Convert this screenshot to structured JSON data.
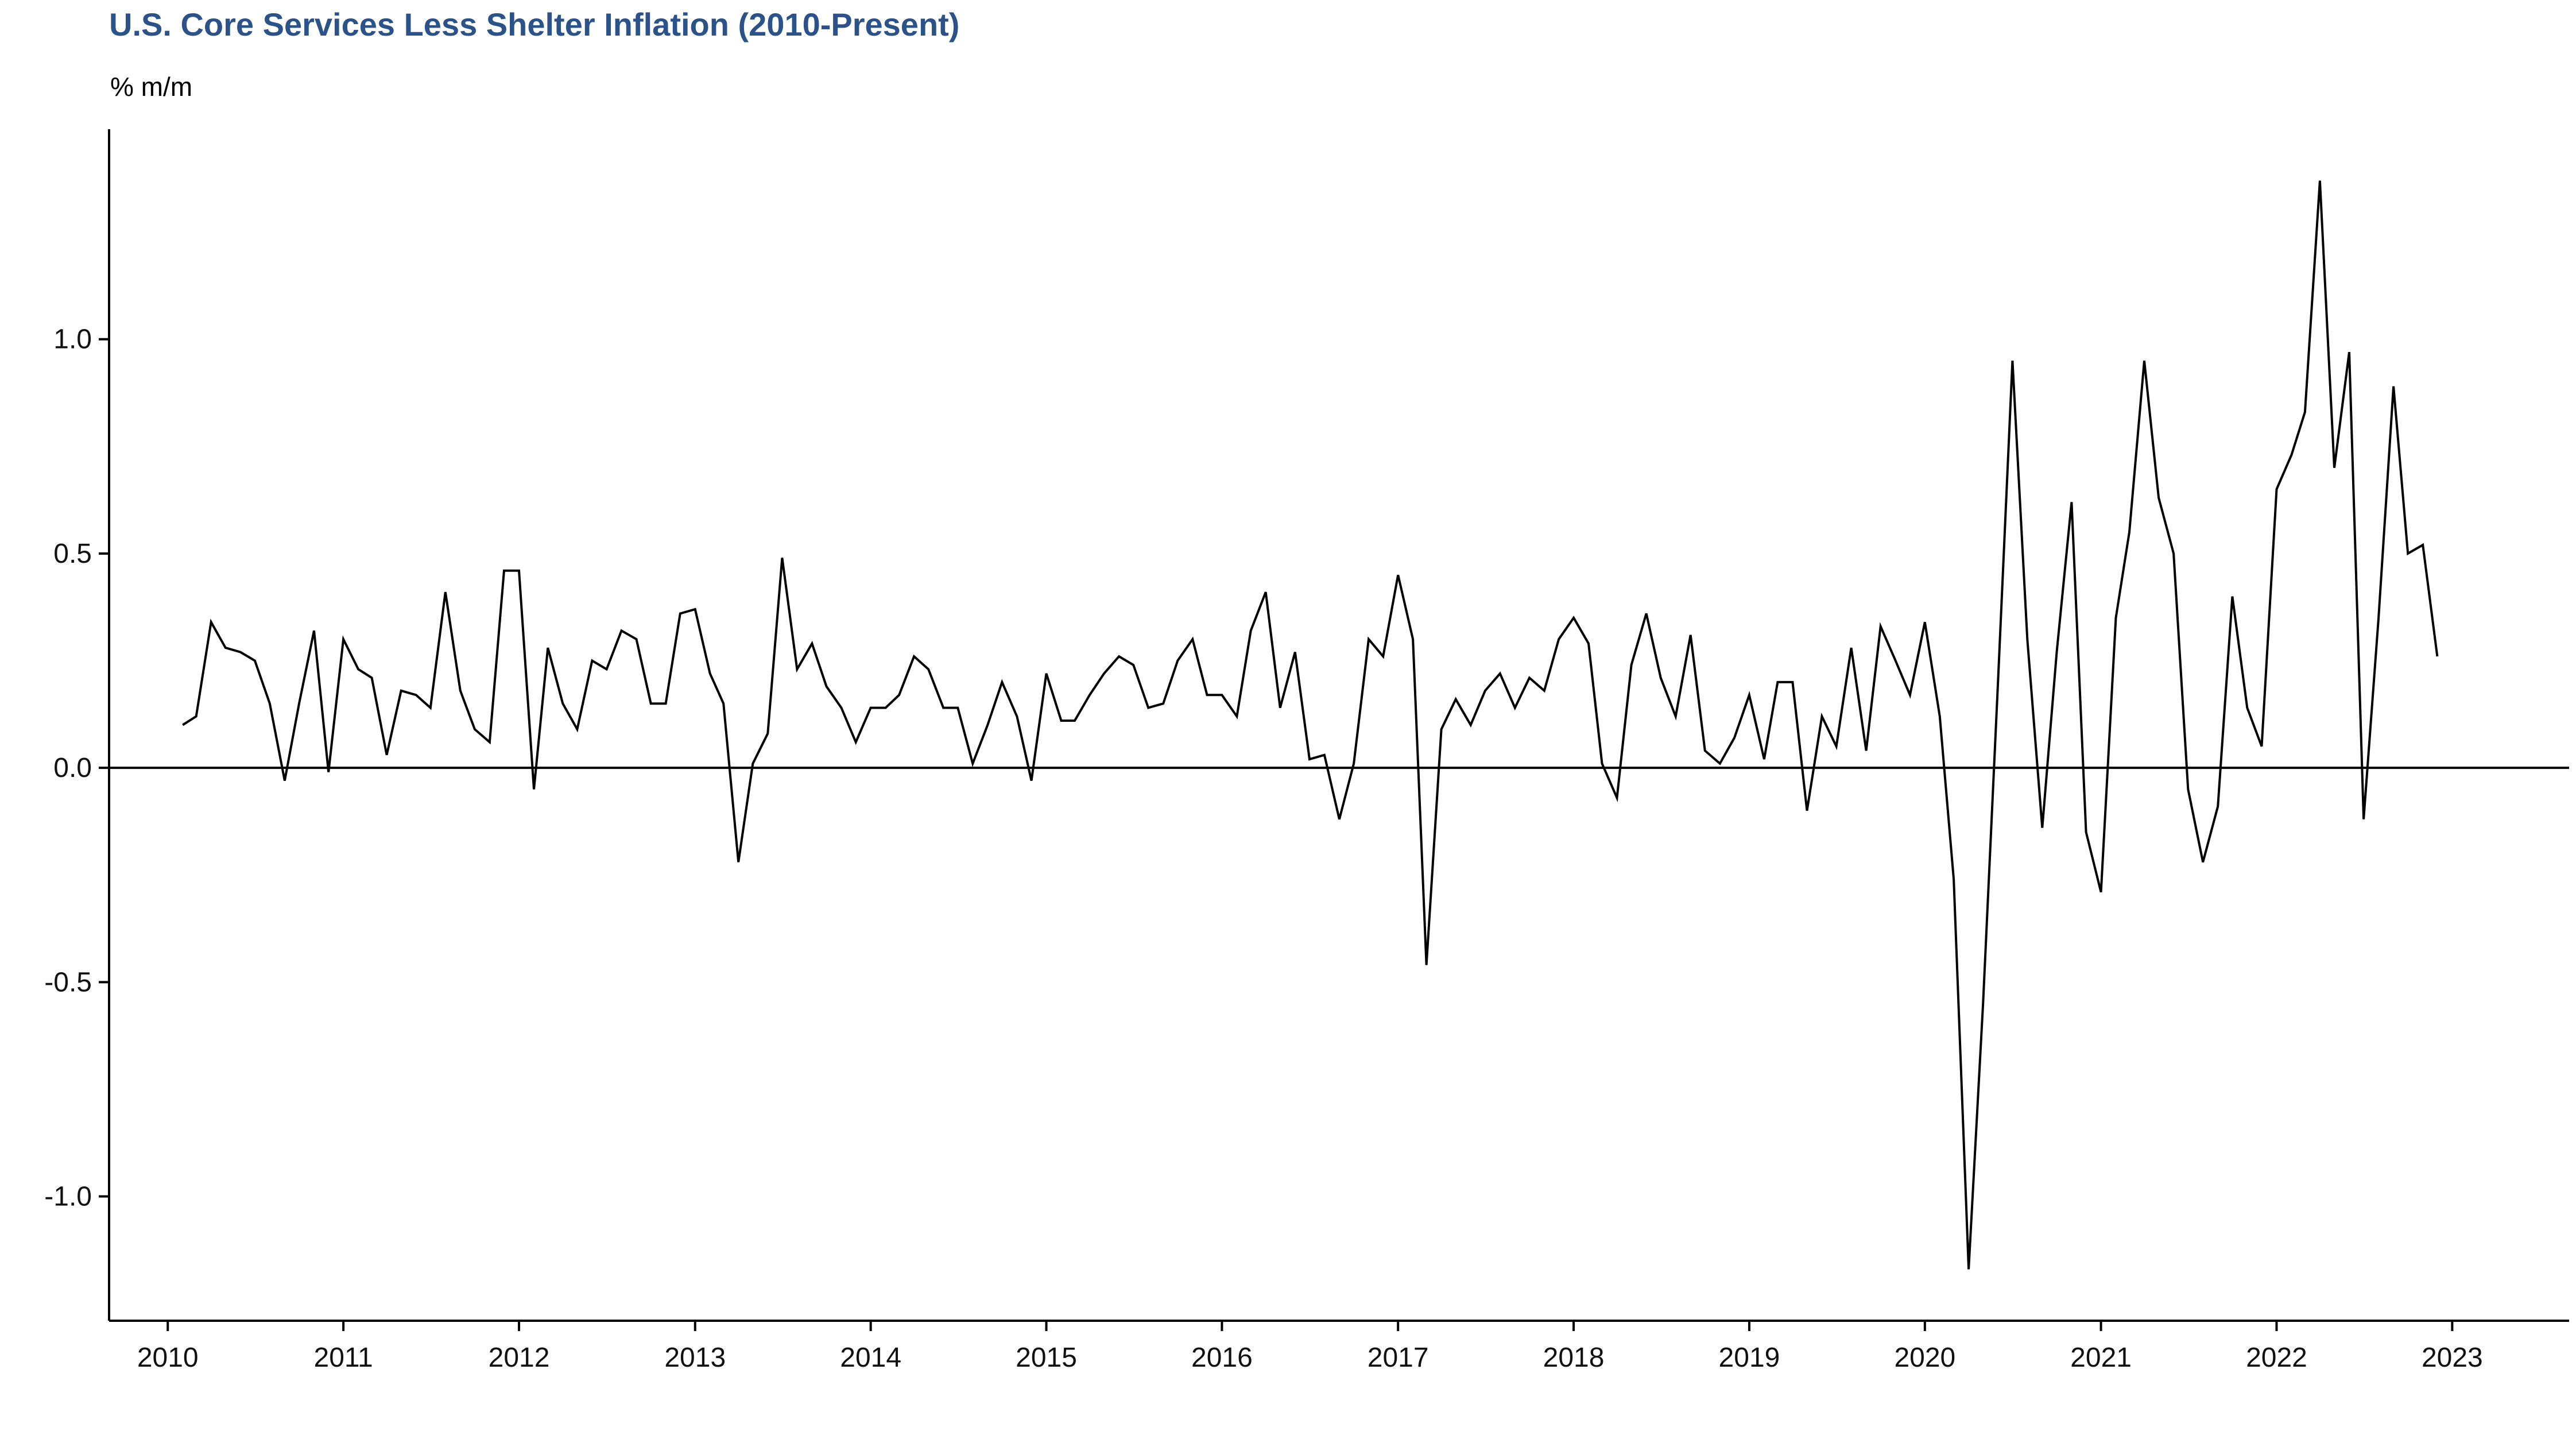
{
  "colors": {
    "title": "#2b5289",
    "line": "#000000"
  },
  "chart_data": {
    "type": "line",
    "title": "U.S. Core Services Less Shelter Inflation (2010-Present)",
    "ylabel": "% m/m",
    "xlabel": "",
    "xlim": [
      "2009-09-01",
      "2023-09-01"
    ],
    "ylim": [
      -1.29,
      1.49
    ],
    "yticks": [
      1.0,
      0.5,
      0.0,
      -0.5,
      -1.0
    ],
    "ytick_labels": [
      "1.0",
      "0.5",
      "0.0",
      "-0.5",
      "-1.0"
    ],
    "xticks": [
      "2010-01-01",
      "2011-01-01",
      "2012-01-01",
      "2013-01-01",
      "2014-01-01",
      "2015-01-01",
      "2016-01-01",
      "2017-01-01",
      "2018-01-01",
      "2019-01-01",
      "2020-01-01",
      "2021-01-01",
      "2022-01-01",
      "2023-01-01"
    ],
    "xtick_labels": [
      "2010",
      "2011",
      "2012",
      "2013",
      "2014",
      "2015",
      "2016",
      "2017",
      "2018",
      "2019",
      "2020",
      "2021",
      "2022",
      "2023"
    ],
    "reference_line": 0.0,
    "grid": false,
    "series": [
      {
        "x": [
          "2010-02",
          "2010-03",
          "2010-04",
          "2010-05",
          "2010-06",
          "2010-07",
          "2010-08",
          "2010-09",
          "2010-10",
          "2010-11",
          "2010-12",
          "2011-01",
          "2011-02",
          "2011-03",
          "2011-04",
          "2011-05",
          "2011-06",
          "2011-07",
          "2011-08",
          "2011-09",
          "2011-10",
          "2011-11",
          "2011-12",
          "2012-01",
          "2012-02",
          "2012-03",
          "2012-04",
          "2012-05",
          "2012-06",
          "2012-07",
          "2012-08",
          "2012-09",
          "2012-10",
          "2012-11",
          "2012-12",
          "2013-01",
          "2013-02",
          "2013-03",
          "2013-04",
          "2013-05",
          "2013-06",
          "2013-07",
          "2013-08",
          "2013-09",
          "2013-10",
          "2013-11",
          "2013-12",
          "2014-01",
          "2014-02",
          "2014-03",
          "2014-04",
          "2014-05",
          "2014-06",
          "2014-07",
          "2014-08",
          "2014-09",
          "2014-10",
          "2014-11",
          "2014-12",
          "2015-01",
          "2015-02",
          "2015-03",
          "2015-04",
          "2015-05",
          "2015-06",
          "2015-07",
          "2015-08",
          "2015-09",
          "2015-10",
          "2015-11",
          "2015-12",
          "2016-01",
          "2016-02",
          "2016-03",
          "2016-04",
          "2016-05",
          "2016-06",
          "2016-07",
          "2016-08",
          "2016-09",
          "2016-10",
          "2016-11",
          "2016-12",
          "2017-01",
          "2017-02",
          "2017-03",
          "2017-04",
          "2017-05",
          "2017-06",
          "2017-07",
          "2017-08",
          "2017-09",
          "2017-10",
          "2017-11",
          "2017-12",
          "2018-01",
          "2018-02",
          "2018-03",
          "2018-04",
          "2018-05",
          "2018-06",
          "2018-07",
          "2018-08",
          "2018-09",
          "2018-10",
          "2018-11",
          "2018-12",
          "2019-01",
          "2019-02",
          "2019-03",
          "2019-04",
          "2019-05",
          "2019-06",
          "2019-07",
          "2019-08",
          "2019-09",
          "2019-10",
          "2019-11",
          "2019-12",
          "2020-01",
          "2020-02",
          "2020-03",
          "2020-04",
          "2020-05",
          "2020-06",
          "2020-07",
          "2020-08",
          "2020-09",
          "2020-10",
          "2020-11",
          "2020-12",
          "2021-01",
          "2021-02",
          "2021-03",
          "2021-04",
          "2021-05",
          "2021-06",
          "2021-07",
          "2021-08",
          "2021-09",
          "2021-10",
          "2021-11",
          "2021-12",
          "2022-01",
          "2022-02",
          "2022-03",
          "2022-04",
          "2022-05",
          "2022-06",
          "2022-07",
          "2022-08",
          "2022-09",
          "2022-10",
          "2022-11",
          "2022-12"
        ],
        "values": [
          0.1,
          0.12,
          0.34,
          0.28,
          0.27,
          0.25,
          0.15,
          -0.03,
          0.15,
          0.32,
          -0.01,
          0.3,
          0.23,
          0.21,
          0.03,
          0.18,
          0.17,
          0.14,
          0.41,
          0.18,
          0.09,
          0.06,
          0.46,
          0.46,
          -0.05,
          0.28,
          0.15,
          0.09,
          0.25,
          0.23,
          0.32,
          0.3,
          0.15,
          0.15,
          0.36,
          0.37,
          0.22,
          0.15,
          -0.22,
          0.01,
          0.08,
          0.49,
          0.23,
          0.29,
          0.19,
          0.14,
          0.06,
          0.14,
          0.14,
          0.17,
          0.26,
          0.23,
          0.14,
          0.14,
          0.01,
          0.1,
          0.2,
          0.12,
          -0.03,
          0.22,
          0.11,
          0.11,
          0.17,
          0.22,
          0.26,
          0.24,
          0.14,
          0.15,
          0.25,
          0.3,
          0.17,
          0.17,
          0.12,
          0.32,
          0.41,
          0.14,
          0.27,
          0.02,
          0.03,
          -0.12,
          0.01,
          0.3,
          0.26,
          0.45,
          0.3,
          -0.46,
          0.09,
          0.16,
          0.1,
          0.18,
          0.22,
          0.14,
          0.21,
          0.18,
          0.3,
          0.35,
          0.29,
          0.01,
          -0.07,
          0.24,
          0.36,
          0.21,
          0.12,
          0.31,
          0.04,
          0.01,
          0.07,
          0.17,
          0.02,
          0.2,
          0.2,
          -0.1,
          0.12,
          0.05,
          0.28,
          0.04,
          0.33,
          0.25,
          0.17,
          0.34,
          0.12,
          -0.26,
          -1.17,
          -0.55,
          0.2,
          0.95,
          0.3,
          -0.14,
          0.27,
          0.62,
          -0.15,
          -0.29,
          0.35,
          0.55,
          0.95,
          0.63,
          0.5,
          -0.05,
          -0.22,
          -0.09,
          0.4,
          0.14,
          0.05,
          0.65,
          0.73,
          0.83,
          1.37,
          0.7,
          0.97,
          -0.12,
          0.35,
          0.89,
          0.5,
          0.52,
          0.26
        ]
      }
    ]
  }
}
